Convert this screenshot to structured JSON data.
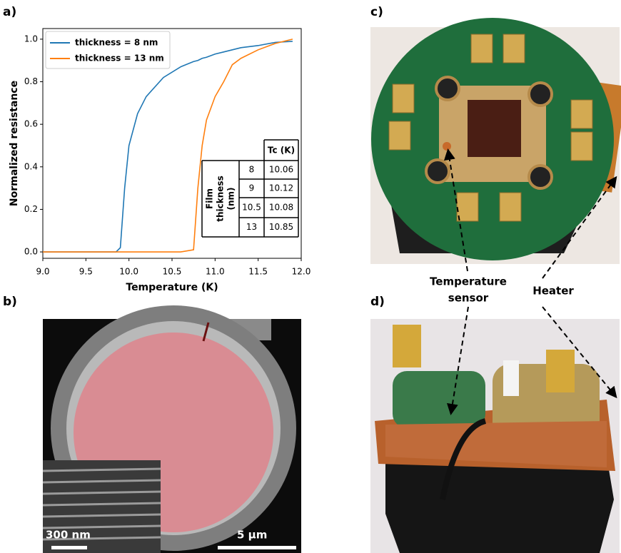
{
  "figure": {
    "panels": [
      "a)",
      "b)",
      "c)",
      "d)"
    ],
    "scale_bars": [
      "300 nm",
      "5 µm"
    ],
    "annotations": [
      {
        "lines": [
          "Temperature",
          "sensor"
        ]
      },
      {
        "lines": [
          "Heater"
        ]
      }
    ]
  },
  "chart_data": {
    "type": "line",
    "xlabel": "Temperature (K)",
    "ylabel": "Normalized resistance",
    "x": [
      9.0,
      9.5,
      9.85,
      9.9,
      9.95,
      10.0,
      10.1,
      10.2,
      10.4,
      10.6,
      10.75,
      10.8,
      10.85,
      10.9,
      11.0,
      11.1,
      11.2,
      11.3,
      11.5,
      11.7,
      11.9
    ],
    "series": [
      {
        "name": "thickness = 8 nm",
        "color": "#1f77b4",
        "values": [
          0,
          0,
          0,
          0.02,
          0.3,
          0.5,
          0.65,
          0.73,
          0.82,
          0.87,
          0.895,
          0.9,
          0.91,
          0.915,
          0.93,
          0.94,
          0.95,
          0.96,
          0.97,
          0.985,
          0.99
        ]
      },
      {
        "name": "thickness = 13 nm",
        "color": "#ff7f0e",
        "values": [
          0,
          0,
          0,
          0,
          0,
          0,
          0,
          0,
          0,
          0,
          0.01,
          0.3,
          0.5,
          0.62,
          0.73,
          0.8,
          0.88,
          0.91,
          0.95,
          0.98,
          1.0
        ]
      }
    ],
    "xlim": [
      9.0,
      12.0
    ],
    "xticks": [
      {
        "value": 9,
        "label": "9.0"
      },
      9.5,
      {
        "value": 10,
        "label": "10.0"
      },
      10.5,
      {
        "value": 11,
        "label": "11.0"
      },
      11.5,
      {
        "value": 12,
        "label": "12.0"
      }
    ],
    "ylim": [
      -0.03,
      1.05
    ],
    "yticks": [
      {
        "value": 0,
        "label": "0.0"
      },
      0.2,
      0.4,
      0.6,
      0.8,
      {
        "value": 1,
        "label": "1.0"
      }
    ],
    "legend": "upper left",
    "table": {
      "header": "Tc (K)",
      "row_header": [
        "Film",
        "thickness",
        "(nm)"
      ],
      "rows": [
        [
          "8",
          "10.06"
        ],
        [
          "9",
          "10.12"
        ],
        [
          "10.5",
          "10.08"
        ],
        [
          "13",
          "10.85"
        ]
      ]
    }
  }
}
